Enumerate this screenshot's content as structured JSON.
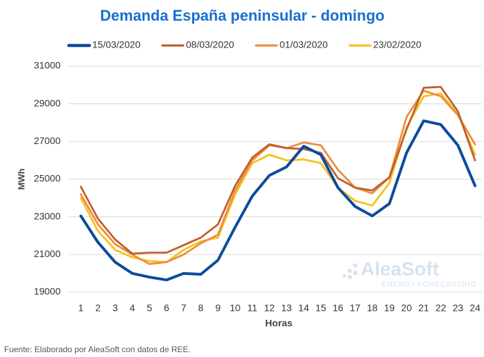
{
  "chart_data": {
    "type": "line",
    "title": "Demanda España peninsular - domingo",
    "y_label": "MWh",
    "x_label": "Horas",
    "source": "Fuente: Elaborado por AleaSoft con datos de REE.",
    "watermark": "AleaSoft",
    "watermark_subtitle": "ENERGY FORECASTING",
    "x": [
      1,
      2,
      3,
      4,
      5,
      6,
      7,
      8,
      9,
      10,
      11,
      12,
      13,
      14,
      15,
      16,
      17,
      18,
      19,
      20,
      21,
      22,
      23,
      24
    ],
    "xticks": [
      1,
      2,
      3,
      4,
      5,
      6,
      7,
      8,
      9,
      10,
      11,
      12,
      13,
      14,
      15,
      16,
      17,
      18,
      19,
      20,
      21,
      22,
      23,
      24
    ],
    "xlim": [
      0.3,
      24.4
    ],
    "ylim": [
      19000,
      31000
    ],
    "yticks": [
      19000,
      21000,
      23000,
      25000,
      27000,
      29000,
      31000
    ],
    "grid": true,
    "legend": "top",
    "series": [
      {
        "name": "15/03/2020",
        "color": "#0b4c9c",
        "width": 4,
        "values": [
          23050,
          21650,
          20600,
          20000,
          19800,
          19650,
          20000,
          19950,
          20700,
          22450,
          24100,
          25200,
          25650,
          26750,
          26300,
          24550,
          23550,
          23050,
          23700,
          26400,
          28100,
          27900,
          26800,
          24650
        ]
      },
      {
        "name": "08/03/2020",
        "color": "#c0602a",
        "width": 2.8,
        "values": [
          24600,
          22900,
          21800,
          21050,
          21100,
          21100,
          21500,
          21900,
          22600,
          24650,
          26150,
          26850,
          26650,
          26600,
          26400,
          25050,
          24550,
          24400,
          25100,
          27650,
          29850,
          29900,
          28600,
          26000
        ]
      },
      {
        "name": "01/03/2020",
        "color": "#ee8c42",
        "width": 2.8,
        "values": [
          24200,
          22600,
          21550,
          21000,
          20500,
          20600,
          21000,
          21600,
          22050,
          24400,
          26000,
          26800,
          26650,
          26950,
          26800,
          25500,
          24550,
          24250,
          25100,
          28300,
          29700,
          29400,
          28400,
          26850
        ]
      },
      {
        "name": "23/02/2020",
        "color": "#f6c21a",
        "width": 2.8,
        "values": [
          24000,
          22250,
          21250,
          20850,
          20650,
          20600,
          21250,
          21700,
          21900,
          24200,
          25850,
          26300,
          26000,
          26050,
          25850,
          24550,
          23850,
          23600,
          24800,
          27750,
          29400,
          29550,
          28450,
          26300
        ]
      }
    ]
  }
}
